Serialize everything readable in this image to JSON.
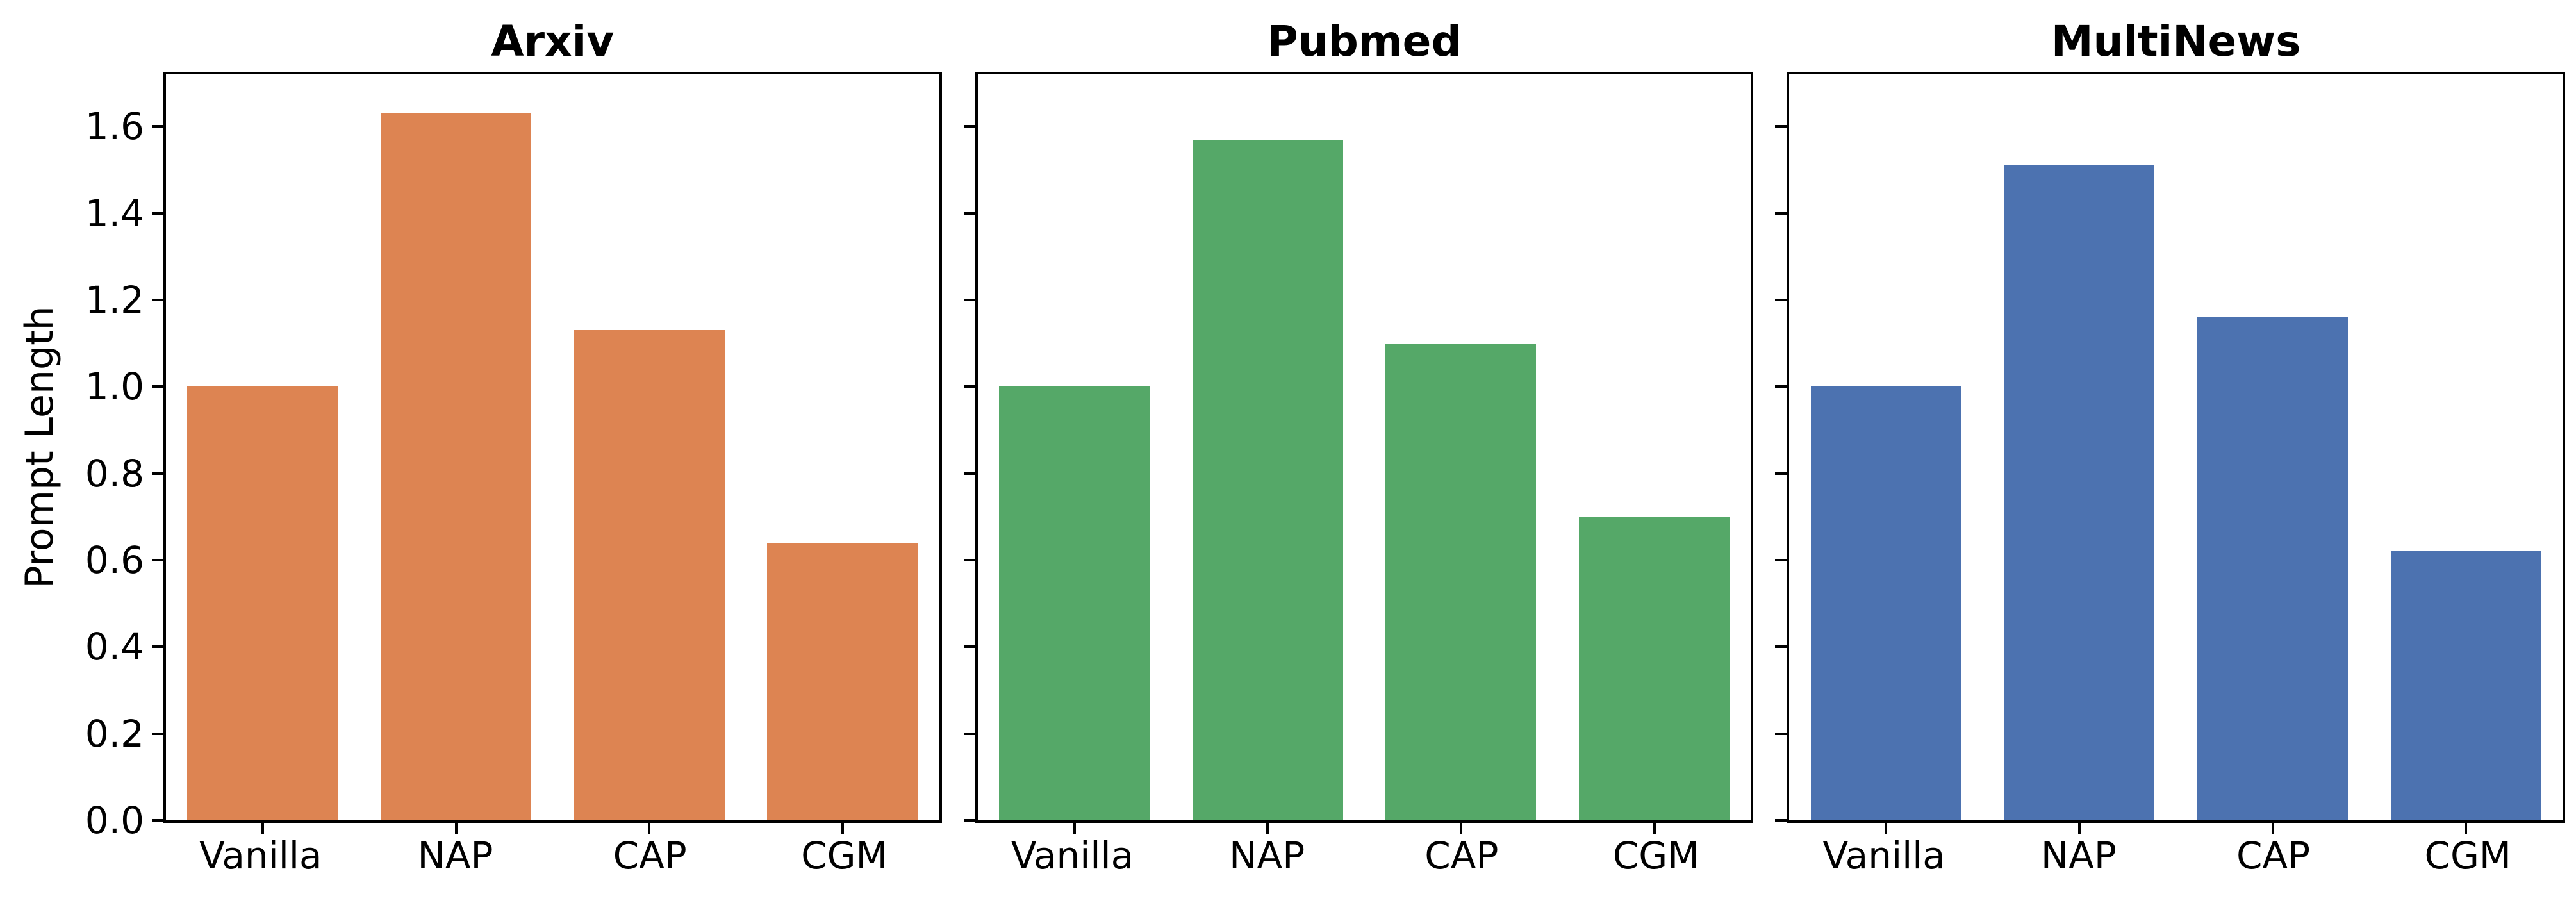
{
  "chart_data": {
    "type": "bar",
    "categories": [
      "Vanilla",
      "NAP",
      "CAP",
      "CGM"
    ],
    "ylabel": "Prompt Length",
    "ylim": [
      0,
      1.72
    ],
    "yticks": [
      0.0,
      0.2,
      0.4,
      0.6,
      0.8,
      1.0,
      1.2,
      1.4,
      1.6
    ],
    "grid": false,
    "legend": "none",
    "bar_width_fraction": 0.78,
    "panels": [
      {
        "title": "Arxiv",
        "color": "#DD8452",
        "values": [
          1.0,
          1.63,
          1.13,
          0.64
        ]
      },
      {
        "title": "Pubmed",
        "color": "#55A868",
        "values": [
          1.0,
          1.57,
          1.1,
          0.7
        ]
      },
      {
        "title": "MultiNews",
        "color": "#4C72B0",
        "values": [
          1.0,
          1.51,
          1.16,
          0.62
        ]
      }
    ]
  }
}
